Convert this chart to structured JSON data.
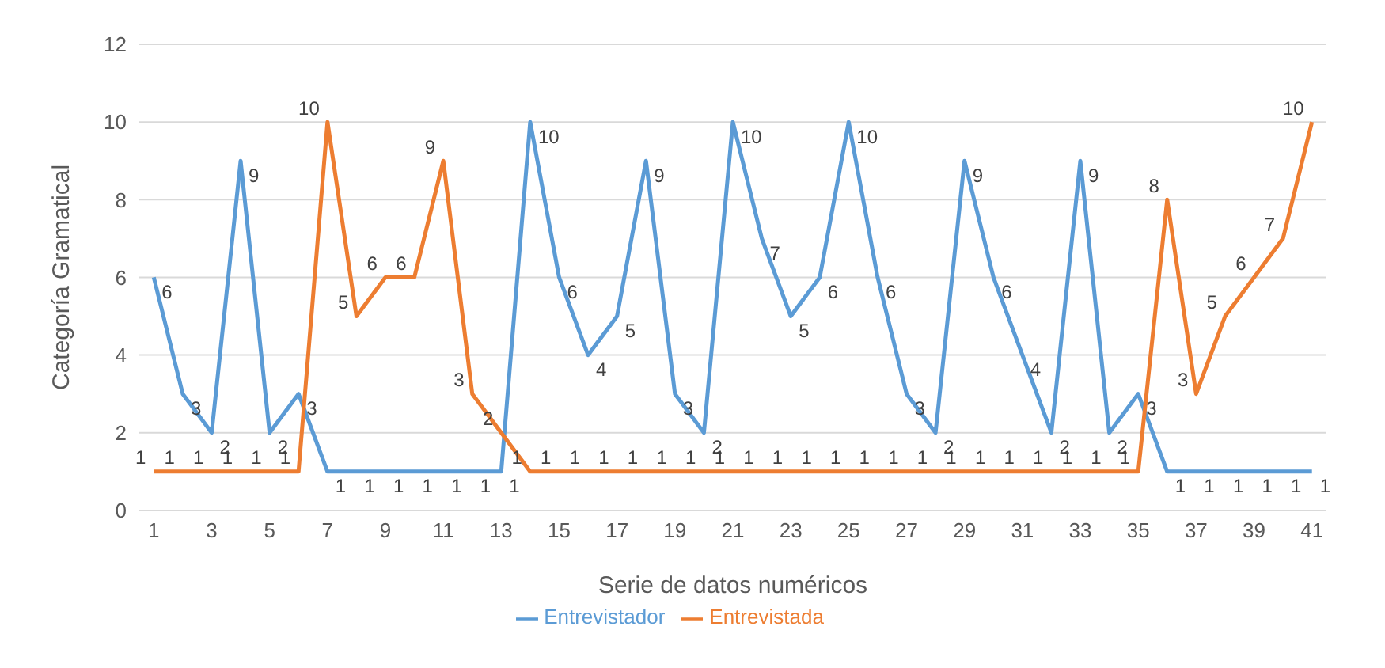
{
  "chart_data": {
    "type": "line",
    "xlabel": "Serie de datos numéricos",
    "ylabel": "Categoría Gramatical",
    "x": [
      1,
      2,
      3,
      4,
      5,
      6,
      7,
      8,
      9,
      10,
      11,
      12,
      13,
      14,
      15,
      16,
      17,
      18,
      19,
      20,
      21,
      22,
      23,
      24,
      25,
      26,
      27,
      28,
      29,
      30,
      31,
      32,
      33,
      34,
      35,
      36,
      37,
      38,
      39,
      40,
      41
    ],
    "xlim": [
      0.5,
      41.5
    ],
    "xticks": [
      1,
      3,
      5,
      7,
      9,
      11,
      13,
      15,
      17,
      19,
      21,
      23,
      25,
      27,
      29,
      31,
      33,
      35,
      37,
      39,
      41
    ],
    "ylim": [
      0,
      12
    ],
    "yticks": [
      0,
      2,
      4,
      6,
      8,
      10,
      12
    ],
    "grid": "y",
    "legend": "bottom",
    "marker": "none",
    "data_labels": true,
    "series": [
      {
        "name": "Entrevistador",
        "color": "#5b9bd5",
        "values": [
          6,
          3,
          2,
          9,
          2,
          3,
          1,
          1,
          1,
          1,
          1,
          1,
          1,
          10,
          6,
          4,
          5,
          9,
          3,
          2,
          10,
          7,
          5,
          6,
          10,
          6,
          3,
          2,
          9,
          6,
          4,
          2,
          9,
          2,
          3,
          1,
          1,
          1,
          1,
          1,
          1
        ]
      },
      {
        "name": "Entrevistada",
        "color": "#ed7d31",
        "values": [
          1,
          1,
          1,
          1,
          1,
          1,
          10,
          5,
          6,
          6,
          9,
          3,
          2,
          1,
          1,
          1,
          1,
          1,
          1,
          1,
          1,
          1,
          1,
          1,
          1,
          1,
          1,
          1,
          1,
          1,
          1,
          1,
          1,
          1,
          1,
          8,
          3,
          5,
          6,
          7,
          10
        ]
      }
    ]
  }
}
